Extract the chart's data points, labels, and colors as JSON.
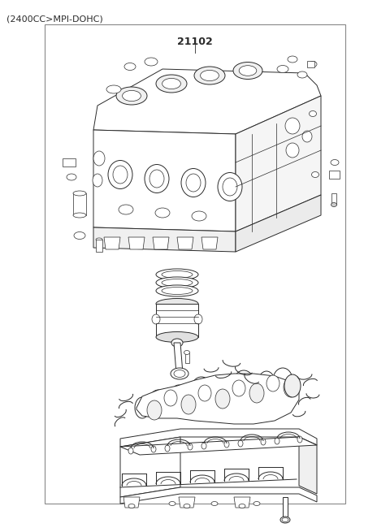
{
  "title": "(2400CC>MPI-DOHC)",
  "part_number": "21102",
  "bg": "#ffffff",
  "lc": "#2a2a2a",
  "fig_width": 4.8,
  "fig_height": 6.55,
  "dpi": 100
}
